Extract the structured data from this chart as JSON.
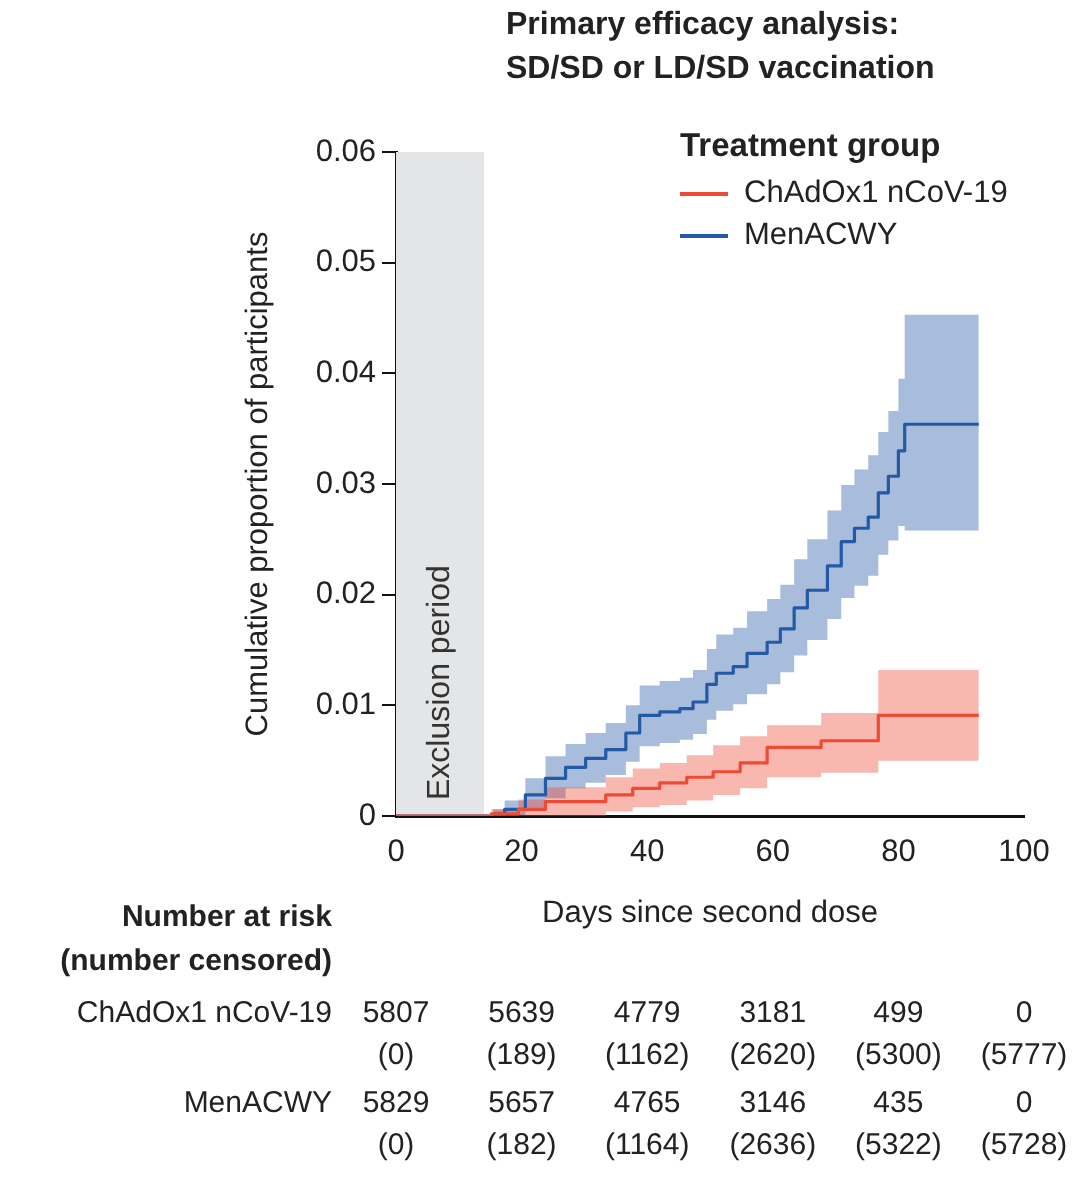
{
  "chart_data": {
    "type": "step",
    "title": "Primary efficacy analysis:",
    "subtitle": "SD/SD or LD/SD vaccination",
    "xlabel": "Days since second dose",
    "ylabel": "Cumulative proportion of participants",
    "legend_title": "Treatment group",
    "legend": "top right",
    "xlim": [
      0,
      100
    ],
    "xticks": [
      0,
      20,
      40,
      60,
      80,
      100
    ],
    "ylim": [
      0,
      0.06
    ],
    "yticks": [
      0,
      0.01,
      0.02,
      0.03,
      0.04,
      0.05,
      0.06
    ],
    "bands": [
      {
        "axis": "x",
        "from": 0,
        "to": 14,
        "label": "Exclusion period",
        "color": "#e4e5e7"
      }
    ],
    "series": [
      {
        "name": "ChAdOx1 nCoV-19",
        "color": "#ee4b36",
        "x": [
          0,
          15.2,
          19.5,
          23.8,
          33.4,
          37.7,
          42,
          46.3,
          50.5,
          54.8,
          59.1,
          67.7,
          76.8,
          92.8
        ],
        "values": [
          0,
          0.0002,
          0.0006,
          0.0013,
          0.0019,
          0.0025,
          0.003,
          0.0035,
          0.004,
          0.0048,
          0.0062,
          0.0068,
          0.0091,
          0.0091
        ],
        "lower": [
          0,
          0,
          0,
          0,
          0.0004,
          0.0008,
          0.001,
          0.0014,
          0.0019,
          0.0025,
          0.0035,
          0.0039,
          0.005,
          0.005
        ],
        "upper": [
          0,
          0.0006,
          0.0015,
          0.0026,
          0.0035,
          0.0043,
          0.0048,
          0.0055,
          0.0064,
          0.0072,
          0.0082,
          0.0093,
          0.0132,
          0.0132
        ]
      },
      {
        "name": "MenACWY",
        "color": "#245aa5",
        "x": [
          0,
          15.5,
          17.3,
          20.6,
          23.8,
          27,
          30.2,
          33.4,
          36.6,
          38.8,
          42,
          45.2,
          47.3,
          49.5,
          51,
          53.7,
          55.9,
          59.1,
          61.2,
          63.4,
          65.5,
          68.7,
          70.9,
          73,
          75.2,
          76.8,
          78.4,
          80,
          81,
          92.8
        ],
        "values": [
          0,
          0.0002,
          0.0006,
          0.0019,
          0.0034,
          0.0044,
          0.0052,
          0.006,
          0.0075,
          0.0091,
          0.0094,
          0.0097,
          0.0103,
          0.0119,
          0.0129,
          0.0135,
          0.0147,
          0.0157,
          0.0169,
          0.0188,
          0.0204,
          0.0226,
          0.0248,
          0.026,
          0.027,
          0.0292,
          0.0307,
          0.033,
          0.0354,
          0.0354
        ],
        "lower": [
          0,
          0,
          0.0001,
          0.0006,
          0.0016,
          0.0025,
          0.003,
          0.0037,
          0.0049,
          0.0063,
          0.0066,
          0.0069,
          0.0074,
          0.0087,
          0.0095,
          0.0101,
          0.011,
          0.0119,
          0.013,
          0.0145,
          0.0159,
          0.0178,
          0.0197,
          0.0208,
          0.0217,
          0.0236,
          0.0249,
          0.0262,
          0.0258,
          0.0258
        ],
        "upper": [
          0,
          0.0006,
          0.0014,
          0.0034,
          0.0054,
          0.0065,
          0.0075,
          0.0084,
          0.01,
          0.0118,
          0.0122,
          0.0125,
          0.0132,
          0.0151,
          0.0164,
          0.017,
          0.0185,
          0.0196,
          0.0209,
          0.0232,
          0.025,
          0.0276,
          0.0299,
          0.0313,
          0.0326,
          0.0347,
          0.0366,
          0.0395,
          0.0453,
          0.0453
        ]
      }
    ],
    "annotations": [
      "Number at risk",
      "(number censored)",
      "ChAdOx1 nCoV-19",
      "5807",
      "5639",
      "4779",
      "3181",
      "499",
      "0",
      "(0)",
      "(189)",
      "(1162)",
      "(2620)",
      "(5300)",
      "(5777)",
      "MenACWY",
      "5829",
      "5657",
      "4765",
      "3146",
      "435",
      "0",
      "(0)",
      "(182)",
      "(1164)",
      "(2636)",
      "(5322)",
      "(5728)"
    ]
  }
}
